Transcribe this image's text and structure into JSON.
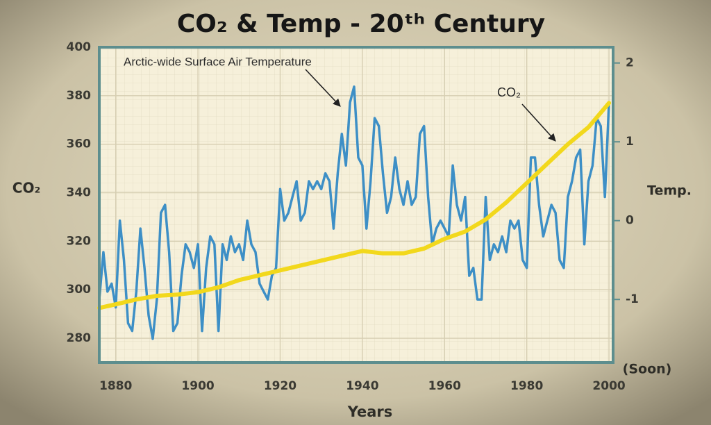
{
  "chart_data": {
    "type": "line",
    "title": "CO₂ & Temp - 20ᵗʰ Century",
    "x_label": "Years",
    "y_label": "CO₂",
    "y2_label": "Temp.",
    "annotations": [
      "(Soon)"
    ],
    "xlim": [
      1876,
      2001
    ],
    "xticks": [
      1880,
      1900,
      1920,
      1940,
      1960,
      1980,
      2000
    ],
    "ylim": [
      270,
      400
    ],
    "yticks": [
      280,
      300,
      320,
      340,
      360,
      380,
      400
    ],
    "y2lim": [
      -1.8,
      2.2
    ],
    "y2ticks": [
      -1,
      0,
      1,
      2
    ],
    "grid": true,
    "series": [
      {
        "name": "Arctic-wide Surface Air Temperature",
        "color": "#3d8fc6",
        "axis": "y2",
        "x": [
          1876,
          1877,
          1878,
          1879,
          1880,
          1881,
          1882,
          1883,
          1884,
          1885,
          1886,
          1887,
          1888,
          1889,
          1890,
          1891,
          1892,
          1893,
          1894,
          1895,
          1896,
          1897,
          1898,
          1899,
          1900,
          1901,
          1902,
          1903,
          1904,
          1905,
          1906,
          1907,
          1908,
          1909,
          1910,
          1911,
          1912,
          1913,
          1914,
          1915,
          1916,
          1917,
          1918,
          1919,
          1920,
          1921,
          1922,
          1923,
          1924,
          1925,
          1926,
          1927,
          1928,
          1929,
          1930,
          1931,
          1932,
          1933,
          1934,
          1935,
          1936,
          1937,
          1938,
          1939,
          1940,
          1941,
          1942,
          1943,
          1944,
          1945,
          1946,
          1947,
          1948,
          1949,
          1950,
          1951,
          1952,
          1953,
          1954,
          1955,
          1956,
          1957,
          1958,
          1959,
          1960,
          1961,
          1962,
          1963,
          1964,
          1965,
          1966,
          1967,
          1968,
          1969,
          1970,
          1971,
          1972,
          1973,
          1974,
          1975,
          1976,
          1977,
          1978,
          1979,
          1980,
          1981,
          1982,
          1983,
          1984,
          1985,
          1986,
          1987,
          1988,
          1989,
          1990,
          1991,
          1992,
          1993,
          1994,
          1995,
          1996,
          1997,
          1998,
          1999,
          2000
        ],
        "values": [
          -1.0,
          -0.4,
          -0.9,
          -0.8,
          -1.1,
          0.0,
          -0.5,
          -1.3,
          -1.4,
          -0.9,
          -0.1,
          -0.6,
          -1.2,
          -1.5,
          -1.0,
          0.1,
          0.2,
          -0.4,
          -1.4,
          -1.3,
          -0.7,
          -0.3,
          -0.4,
          -0.6,
          -0.3,
          -1.4,
          -0.6,
          -0.2,
          -0.3,
          -1.4,
          -0.3,
          -0.5,
          -0.2,
          -0.4,
          -0.3,
          -0.5,
          0.0,
          -0.3,
          -0.4,
          -0.8,
          -0.9,
          -1.0,
          -0.7,
          -0.6,
          0.4,
          0.0,
          0.1,
          0.3,
          0.5,
          0.0,
          0.1,
          0.5,
          0.4,
          0.5,
          0.4,
          0.6,
          0.5,
          -0.1,
          0.6,
          1.1,
          0.7,
          1.5,
          1.7,
          0.8,
          0.7,
          -0.1,
          0.5,
          1.3,
          1.2,
          0.6,
          0.1,
          0.3,
          0.8,
          0.4,
          0.2,
          0.5,
          0.2,
          0.3,
          1.1,
          1.2,
          0.3,
          -0.3,
          -0.1,
          0.0,
          -0.1,
          -0.2,
          0.7,
          0.2,
          0.0,
          0.3,
          -0.7,
          -0.6,
          -1.0,
          -1.0,
          0.3,
          -0.5,
          -0.3,
          -0.4,
          -0.2,
          -0.4,
          0.0,
          -0.1,
          0.0,
          -0.5,
          -0.6,
          0.8,
          0.8,
          0.2,
          -0.2,
          0.0,
          0.2,
          0.1,
          -0.5,
          -0.6,
          0.3,
          0.5,
          0.8,
          0.9,
          -0.3,
          0.5,
          0.7,
          1.3,
          1.2,
          0.3,
          1.5
        ]
      },
      {
        "name": "CO₂",
        "color": "#f2d81c",
        "x": [
          1876,
          1880,
          1885,
          1890,
          1895,
          1900,
          1905,
          1910,
          1915,
          1920,
          1925,
          1930,
          1935,
          1940,
          1945,
          1950,
          1955,
          1960,
          1965,
          1970,
          1975,
          1980,
          1985,
          1990,
          1995,
          2000
        ],
        "values": [
          292.5,
          294,
          296,
          297.5,
          298,
          299,
          301,
          304,
          306,
          308,
          310,
          312,
          314,
          316,
          315,
          315,
          317,
          321,
          324,
          329,
          336,
          344,
          352,
          360,
          367,
          377
        ]
      }
    ]
  }
}
